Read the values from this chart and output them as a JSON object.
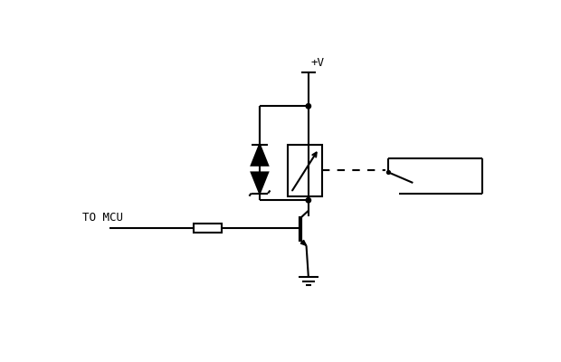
{
  "bg_color": "#ffffff",
  "line_color": "#000000",
  "lw": 1.5,
  "lw_thick": 3.0,
  "figsize": [
    6.2,
    4.0
  ],
  "dpi": 100,
  "vplus_label": "+V",
  "mcu_label": "TO MCU",
  "font_size": 9
}
